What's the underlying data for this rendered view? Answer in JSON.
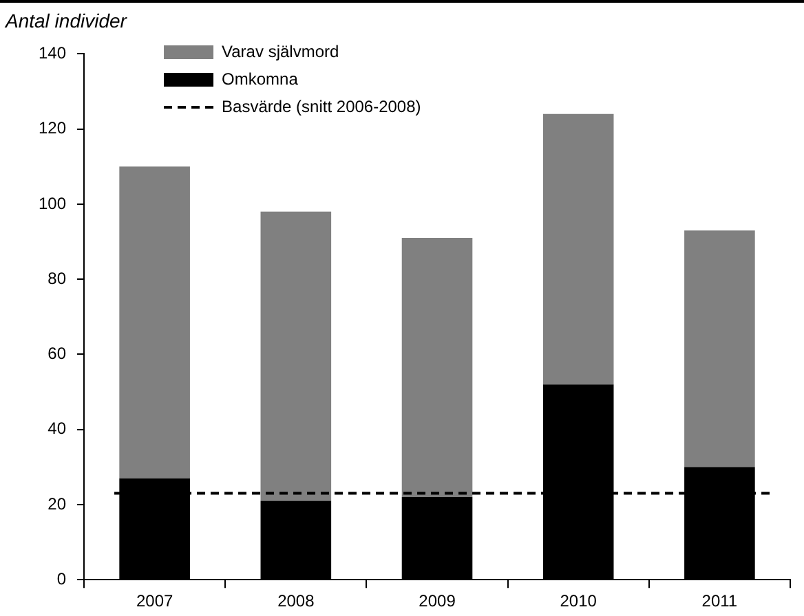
{
  "chart_data": {
    "type": "bar",
    "ylabel": "Antal individer",
    "stacked": true,
    "categories": [
      "2007",
      "2008",
      "2009",
      "2010",
      "2011"
    ],
    "series": [
      {
        "name": "Omkomna",
        "color": "#000000",
        "values": [
          27,
          21,
          22,
          52,
          30
        ]
      },
      {
        "name": "Varav självmord",
        "color": "#808080",
        "values": [
          83,
          77,
          69,
          72,
          63
        ]
      }
    ],
    "ylim": [
      0,
      140
    ],
    "yticks": [
      0,
      20,
      40,
      60,
      80,
      100,
      120,
      140
    ],
    "grid": false,
    "legend": "top",
    "ref_lines": [
      {
        "axis": "y",
        "value": 23,
        "label": "Basvärde (snitt 2006-2008)",
        "color": "#000000",
        "line_style": "dashed"
      }
    ]
  }
}
